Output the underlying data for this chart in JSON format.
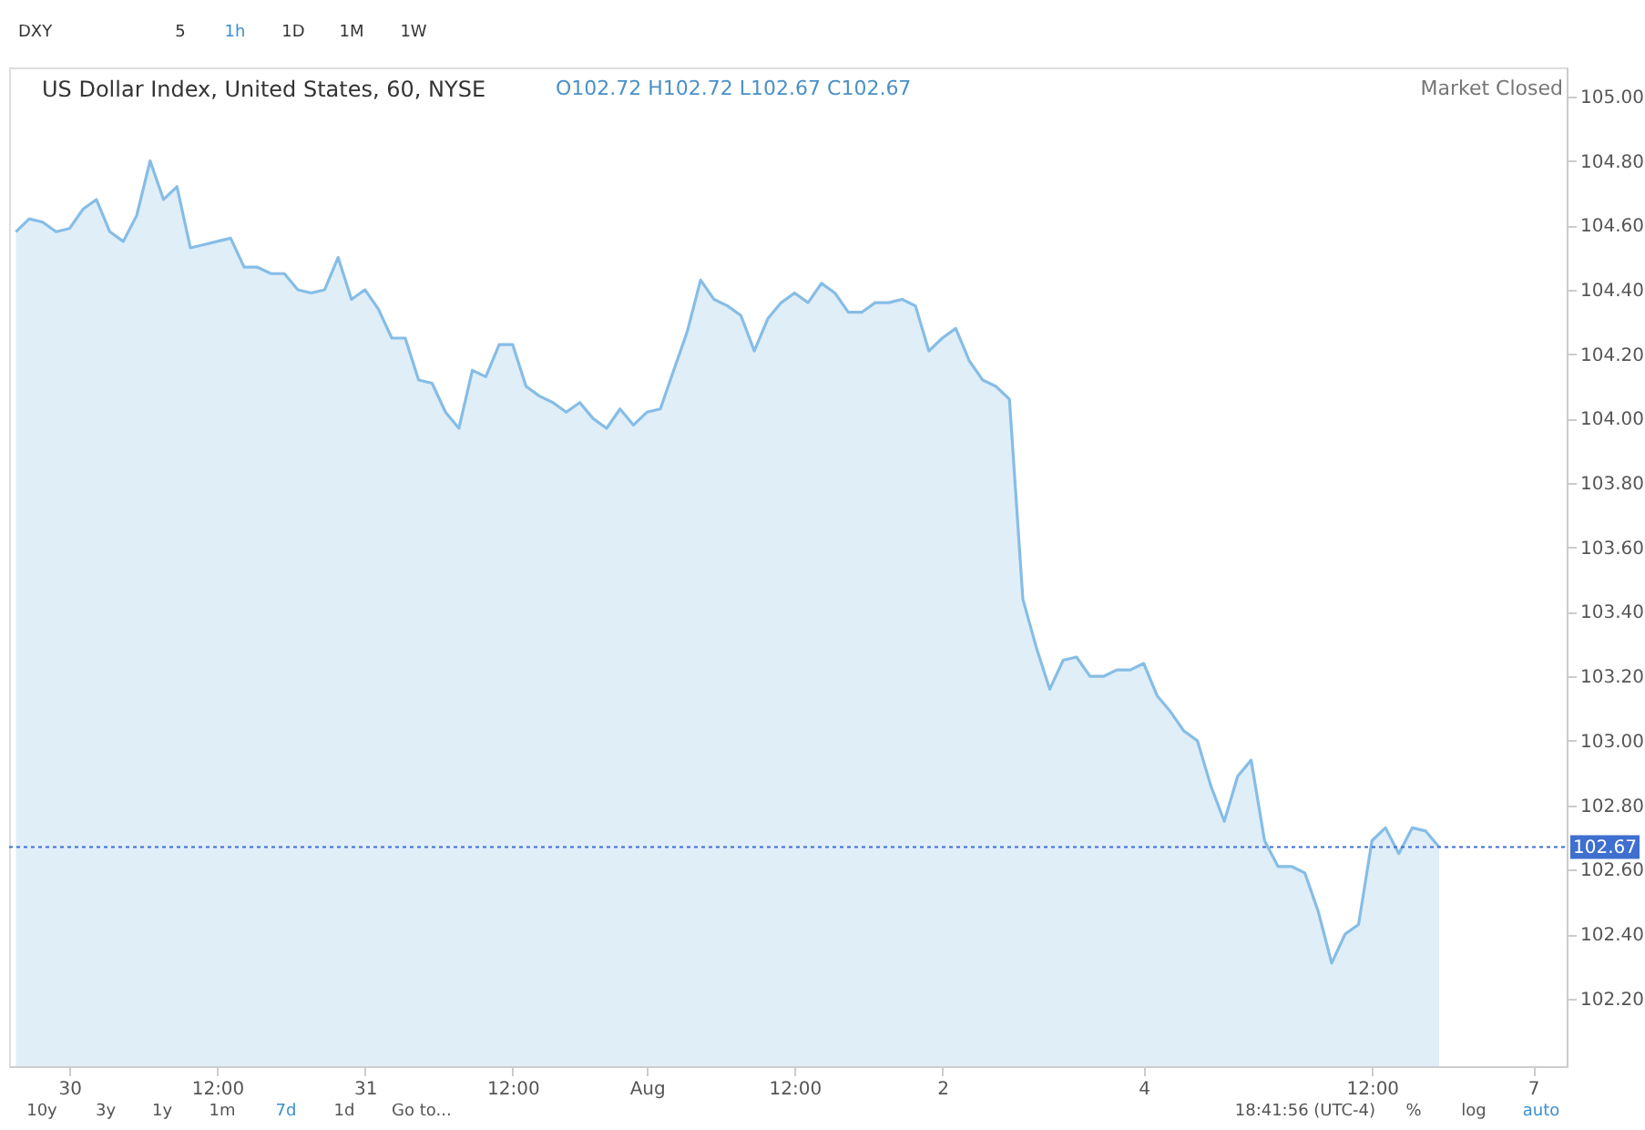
{
  "chart_data": {
    "type": "area",
    "title": "US Dollar Index, United States, 60, NYSE",
    "annotations": [
      "O102.72 H102.72 L102.67 C102.67",
      "Market Closed",
      "DXY",
      "5",
      "1h",
      "1D",
      "1M",
      "1W",
      "10y",
      "3y",
      "1y",
      "1m",
      "7d",
      "1d",
      "Go to...",
      "18:41:56 (UTC-4)",
      "%",
      "log",
      "auto"
    ],
    "categories": [
      null,
      null,
      null,
      null,
      "30",
      null,
      null,
      null,
      null,
      null,
      null,
      null,
      null,
      null,
      null,
      "12:00",
      null,
      null,
      null,
      null,
      null,
      null,
      null,
      null,
      null,
      null,
      "31",
      null,
      null,
      null,
      null,
      null,
      null,
      null,
      null,
      null,
      null,
      "12:00",
      null,
      null,
      null,
      null,
      null,
      null,
      null,
      null,
      null,
      "Aug",
      null,
      null,
      null,
      null,
      null,
      null,
      null,
      null,
      null,
      null,
      "12:00",
      null,
      null,
      null,
      null,
      null,
      null,
      null,
      null,
      null,
      null,
      "2",
      null,
      null,
      null,
      null,
      null,
      null,
      null,
      null,
      null,
      null,
      null,
      null,
      null,
      null,
      "4",
      null,
      null,
      null,
      null,
      null,
      null,
      null,
      null,
      null,
      null,
      null,
      null,
      null,
      null,
      null,
      null,
      "12:00",
      null,
      null,
      null,
      null,
      null,
      null,
      null,
      null,
      null,
      null,
      null,
      "7",
      null,
      null
    ],
    "series": [
      {
        "color": "#86bde6",
        "values": [
          104.58,
          104.62,
          104.61,
          104.58,
          104.59,
          104.65,
          104.68,
          104.58,
          104.55,
          104.63,
          104.8,
          104.68,
          104.72,
          104.53,
          104.54,
          104.55,
          104.56,
          104.47,
          104.47,
          104.45,
          104.45,
          104.4,
          104.39,
          104.4,
          104.5,
          104.37,
          104.4,
          104.34,
          104.25,
          104.25,
          104.12,
          104.11,
          104.02,
          103.97,
          104.15,
          104.13,
          104.23,
          104.23,
          104.1,
          104.07,
          104.05,
          104.02,
          104.05,
          104.0,
          103.97,
          104.03,
          103.98,
          104.02,
          104.03,
          104.15,
          104.27,
          104.43,
          104.37,
          104.35,
          104.32,
          104.21,
          104.31,
          104.36,
          104.39,
          104.36,
          104.42,
          104.39,
          104.33,
          104.33,
          104.36,
          104.36,
          104.37,
          104.35,
          104.21,
          104.25,
          104.28,
          104.18,
          104.12,
          104.1,
          104.06,
          103.44,
          103.29,
          103.16,
          103.25,
          103.26,
          103.2,
          103.2,
          103.22,
          103.22,
          103.24,
          103.14,
          103.09,
          103.03,
          103.0,
          102.86,
          102.75,
          102.89,
          102.94,
          102.69,
          102.61,
          102.61,
          102.59,
          102.47,
          102.31,
          102.4,
          102.43,
          102.69,
          102.73,
          102.65,
          102.73,
          102.72,
          102.67,
          null,
          null,
          null,
          null,
          null,
          null,
          null,
          null,
          null
        ]
      }
    ],
    "ylim": [
      101.99,
      105.09
    ],
    "yticks": [
      {
        "value": 102.2,
        "label": "102.20"
      },
      {
        "value": 102.4,
        "label": "102.40"
      },
      {
        "value": 102.6,
        "label": "102.60"
      },
      {
        "value": 102.8,
        "label": "102.80"
      },
      {
        "value": 103.0,
        "label": "103.00"
      },
      {
        "value": 103.2,
        "label": "103.20"
      },
      {
        "value": 103.4,
        "label": "103.40"
      },
      {
        "value": 103.6,
        "label": "103.60"
      },
      {
        "value": 103.8,
        "label": "103.80"
      },
      {
        "value": 104.0,
        "label": "104.00"
      },
      {
        "value": 104.2,
        "label": "104.20"
      },
      {
        "value": 104.4,
        "label": "104.40"
      },
      {
        "value": 104.6,
        "label": "104.60"
      },
      {
        "value": 104.8,
        "label": "104.80"
      },
      {
        "value": 105.0,
        "label": "105.00"
      }
    ],
    "ref_lines": [
      {
        "axis": "y",
        "value": 102.67,
        "label": "102.67",
        "color": "#3f6fcf",
        "line_style": "dotted"
      }
    ],
    "grid": false
  }
}
